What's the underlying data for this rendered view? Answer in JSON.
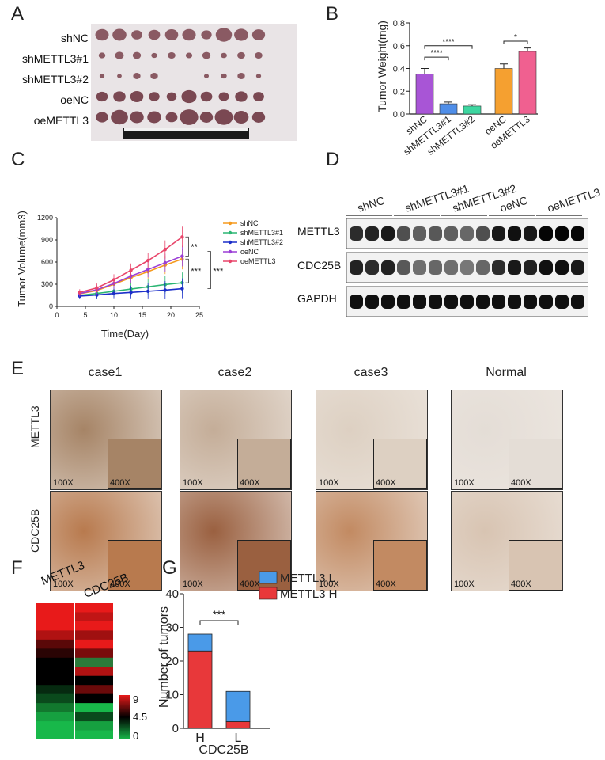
{
  "panels": [
    "A",
    "B",
    "C",
    "D",
    "E",
    "F",
    "G"
  ],
  "panelA": {
    "rows": [
      "shNC",
      "shMETTL3#1",
      "shMETTL3#2",
      "oeNC",
      "oeMETTL3"
    ]
  },
  "panelB": {
    "chart_data": {
      "type": "bar",
      "ylabel": "Tumor Weight(mg)",
      "categories": [
        "shNC",
        "shMETTL3#1",
        "shMETTL3#2",
        "oeNC",
        "oeMETTL3"
      ],
      "values": [
        0.35,
        0.09,
        0.07,
        0.4,
        0.55
      ],
      "errors": [
        0.05,
        0.015,
        0.012,
        0.04,
        0.03
      ],
      "colors": [
        "#a855d6",
        "#4f8ee8",
        "#3dd6a0",
        "#f5a030",
        "#f06090"
      ],
      "ylim": [
        0,
        0.8
      ],
      "yticks": [
        "0.0",
        "0.2",
        "0.4",
        "0.6",
        "0.8"
      ],
      "significance": [
        {
          "from": 0,
          "to": 1,
          "label": "****"
        },
        {
          "from": 0,
          "to": 2,
          "label": "****"
        },
        {
          "from": 3,
          "to": 4,
          "label": "*"
        }
      ]
    }
  },
  "panelC": {
    "chart_data": {
      "type": "line",
      "xlabel": "Time(Day)",
      "ylabel": "Tumor Volume(mm3)",
      "x": [
        4,
        7,
        10,
        13,
        16,
        19,
        22
      ],
      "xlim": [
        0,
        25
      ],
      "xticks": [
        "0",
        "5",
        "10",
        "15",
        "20",
        "25"
      ],
      "ylim": [
        0,
        1200
      ],
      "yticks": [
        "0",
        "300",
        "600",
        "900",
        "1200"
      ],
      "series": [
        {
          "name": "shNC",
          "color": "#f59a1e",
          "values": [
            170,
            215,
            300,
            390,
            470,
            560,
            640
          ]
        },
        {
          "name": "shMETTL3#1",
          "color": "#2bb673",
          "values": [
            150,
            175,
            205,
            235,
            265,
            295,
            320
          ]
        },
        {
          "name": "shMETTL3#2",
          "color": "#1c2ec9",
          "values": [
            140,
            155,
            175,
            190,
            205,
            220,
            240
          ]
        },
        {
          "name": "oeNC",
          "color": "#9b3fd6",
          "values": [
            175,
            225,
            310,
            410,
            500,
            590,
            680
          ]
        },
        {
          "name": "oeMETTL3",
          "color": "#e8456a",
          "values": [
            190,
            250,
            360,
            490,
            620,
            770,
            940
          ]
        }
      ],
      "annotations": [
        "**",
        "***",
        "***"
      ]
    }
  },
  "panelD": {
    "groups": [
      "shNC",
      "shMETTL3#1",
      "shMETTL3#2",
      "oeNC",
      "oeMETTL3"
    ],
    "blots": [
      "METTL3",
      "CDC25B",
      "GAPDH"
    ]
  },
  "panelE": {
    "cases": [
      "case1",
      "case2",
      "case3",
      "Normal"
    ],
    "rows": [
      "METTL3",
      "CDC25B"
    ],
    "mag_low": "100X",
    "mag_high": "400X"
  },
  "panelF": {
    "columns": [
      "METTL3",
      "CDC25B"
    ],
    "scale": [
      "9",
      "4.5",
      "0"
    ]
  },
  "panelG": {
    "chart_data": {
      "type": "bar",
      "stacked": true,
      "ylabel": "Number of tumors",
      "xlabel": "CDC25B",
      "categories": [
        "H",
        "L"
      ],
      "series": [
        {
          "name": "METTL3 H",
          "color": "#e8383a",
          "values": [
            23,
            2
          ]
        },
        {
          "name": "METTL3 L",
          "color": "#4a9ae8",
          "values": [
            5,
            9
          ]
        }
      ],
      "ylim": [
        0,
        40
      ],
      "yticks": [
        "0",
        "10",
        "20",
        "30",
        "40"
      ],
      "significance": "***",
      "legend": "right"
    }
  }
}
